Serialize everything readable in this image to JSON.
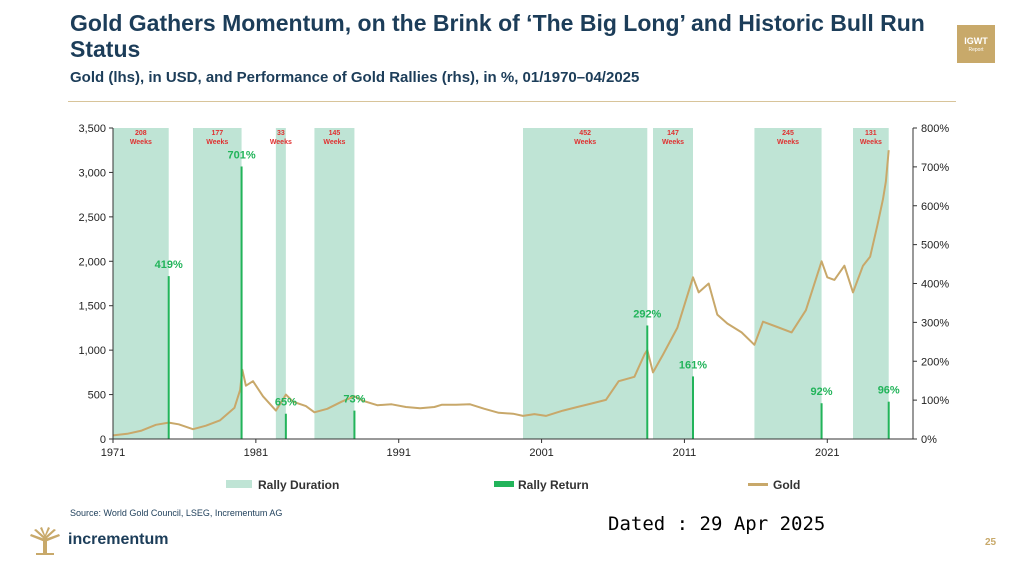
{
  "header": {
    "title": "Gold Gathers Momentum, on the Brink of ‘The Big Long’ and Historic Bull Run Status",
    "subtitle": "Gold (lhs), in USD, and Performance of Gold Rallies (rhs), in %, 01/1970–04/2025",
    "badge_line1": "IGWT",
    "badge_line2": "Report"
  },
  "chart_data": {
    "type": "line",
    "x_range": [
      1971.0,
      2027.0
    ],
    "ylim_left": [
      0,
      3500
    ],
    "ylim_right": [
      0,
      800
    ],
    "left_ticks": [
      "0",
      "500",
      "1,000",
      "1,500",
      "2,000",
      "2,500",
      "3,000",
      "3,500"
    ],
    "right_ticks": [
      "0%",
      "100%",
      "200%",
      "300%",
      "400%",
      "500%",
      "600%",
      "700%",
      "800%"
    ],
    "x_ticks": [
      "1971",
      "1981",
      "1991",
      "2001",
      "2011",
      "2021"
    ],
    "grid": false,
    "legend_position": "bottom",
    "legend": [
      "Rally Duration",
      "Rally Return",
      "Gold"
    ],
    "colors": {
      "rally_duration": "#bfe4d5",
      "rally_return": "#22b45a",
      "gold": "#c8a86a",
      "week_label": "#e03030",
      "return_label": "#22b45a"
    },
    "rallies": [
      {
        "start": 1971.0,
        "end": 1974.9,
        "weeks_value": "208",
        "weeks_unit": "Weeks",
        "return": 419,
        "return_label": "419%"
      },
      {
        "start": 1976.6,
        "end": 1980.0,
        "weeks_value": "177",
        "weeks_unit": "Weeks",
        "return": 701,
        "return_label": "701%"
      },
      {
        "start": 1982.4,
        "end": 1983.1,
        "weeks_value": "33",
        "weeks_unit": "Weeks",
        "return": 65,
        "return_label": "65%"
      },
      {
        "start": 1985.1,
        "end": 1987.9,
        "weeks_value": "145",
        "weeks_unit": "Weeks",
        "return": 73,
        "return_label": "73%"
      },
      {
        "start": 1999.7,
        "end": 2008.4,
        "weeks_value": "452",
        "weeks_unit": "Weeks",
        "return": 292,
        "return_label": "292%"
      },
      {
        "start": 2008.8,
        "end": 2011.6,
        "weeks_value": "147",
        "weeks_unit": "Weeks",
        "return": 161,
        "return_label": "161%"
      },
      {
        "start": 2015.9,
        "end": 2020.6,
        "weeks_value": "245",
        "weeks_unit": "Weeks",
        "return": 92,
        "return_label": "92%"
      },
      {
        "start": 2022.8,
        "end": 2025.3,
        "weeks_value": "131",
        "weeks_unit": "Weeks",
        "return": 96,
        "return_label": "96%"
      }
    ],
    "gold_series": {
      "name": "Gold",
      "points": [
        [
          1971.0,
          40
        ],
        [
          1972.0,
          58
        ],
        [
          1973.0,
          95
        ],
        [
          1974.0,
          160
        ],
        [
          1974.9,
          185
        ],
        [
          1975.6,
          165
        ],
        [
          1976.6,
          110
        ],
        [
          1977.5,
          150
        ],
        [
          1978.5,
          210
        ],
        [
          1979.5,
          350
        ],
        [
          1979.9,
          550
        ],
        [
          1980.05,
          780
        ],
        [
          1980.3,
          600
        ],
        [
          1980.8,
          650
        ],
        [
          1981.5,
          480
        ],
        [
          1982.4,
          320
        ],
        [
          1983.1,
          500
        ],
        [
          1983.6,
          420
        ],
        [
          1984.5,
          370
        ],
        [
          1985.1,
          300
        ],
        [
          1986.0,
          340
        ],
        [
          1987.0,
          420
        ],
        [
          1987.9,
          480
        ],
        [
          1988.5,
          430
        ],
        [
          1989.5,
          380
        ],
        [
          1990.5,
          390
        ],
        [
          1991.5,
          360
        ],
        [
          1992.5,
          345
        ],
        [
          1993.5,
          360
        ],
        [
          1994.0,
          385
        ],
        [
          1995.0,
          385
        ],
        [
          1996.0,
          390
        ],
        [
          1997.0,
          340
        ],
        [
          1998.0,
          295
        ],
        [
          1999.0,
          285
        ],
        [
          1999.7,
          260
        ],
        [
          2000.5,
          280
        ],
        [
          2001.3,
          260
        ],
        [
          2002.5,
          320
        ],
        [
          2003.5,
          360
        ],
        [
          2004.5,
          400
        ],
        [
          2005.5,
          440
        ],
        [
          2006.4,
          650
        ],
        [
          2007.5,
          700
        ],
        [
          2008.2,
          950
        ],
        [
          2008.4,
          1000
        ],
        [
          2008.8,
          750
        ],
        [
          2009.5,
          950
        ],
        [
          2010.5,
          1250
        ],
        [
          2011.6,
          1820
        ],
        [
          2012.0,
          1650
        ],
        [
          2012.7,
          1750
        ],
        [
          2013.3,
          1400
        ],
        [
          2014.0,
          1300
        ],
        [
          2015.0,
          1200
        ],
        [
          2015.9,
          1060
        ],
        [
          2016.5,
          1320
        ],
        [
          2017.5,
          1260
        ],
        [
          2018.5,
          1200
        ],
        [
          2019.5,
          1450
        ],
        [
          2020.6,
          2000
        ],
        [
          2021.0,
          1820
        ],
        [
          2021.5,
          1790
        ],
        [
          2022.2,
          1950
        ],
        [
          2022.8,
          1650
        ],
        [
          2023.5,
          1950
        ],
        [
          2024.0,
          2050
        ],
        [
          2024.5,
          2400
        ],
        [
          2024.9,
          2700
        ],
        [
          2025.1,
          2900
        ],
        [
          2025.3,
          3250
        ]
      ]
    }
  },
  "footer": {
    "source": "Source: World Gold Council, LSEG, Incrementum AG",
    "brand": "incrementum",
    "dated": "Dated : 29 Apr 2025",
    "page": "25"
  }
}
